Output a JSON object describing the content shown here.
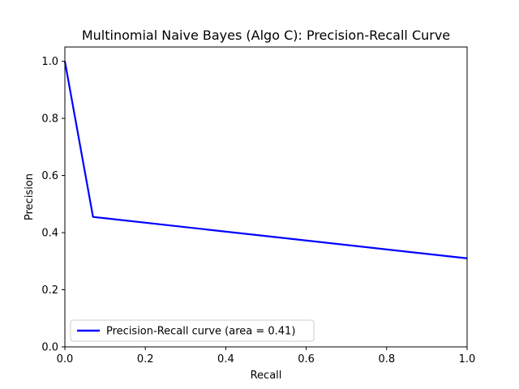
{
  "chart_data": {
    "type": "line",
    "title": "Multinomial Naive Bayes (Algo C): Precision-Recall Curve",
    "xlabel": "Recall",
    "ylabel": "Precision",
    "xlim": [
      0.0,
      1.0
    ],
    "ylim": [
      0.0,
      1.05
    ],
    "xticks": [
      "0.0",
      "0.2",
      "0.4",
      "0.6",
      "0.8",
      "1.0"
    ],
    "yticks": [
      "0.0",
      "0.2",
      "0.4",
      "0.6",
      "0.8",
      "1.0"
    ],
    "grid": false,
    "legend_position": "lower-left",
    "series": [
      {
        "name": "Precision-Recall curve (area = 0.41)",
        "color": "#0000ff",
        "x": [
          0.0,
          0.07,
          1.0
        ],
        "y": [
          1.0,
          0.455,
          0.31
        ]
      }
    ]
  }
}
